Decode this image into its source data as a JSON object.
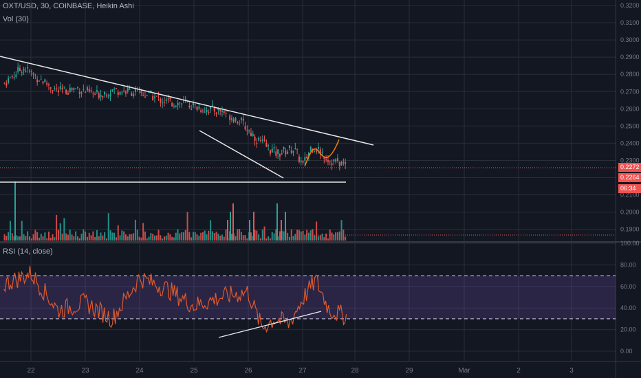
{
  "legend": {
    "symbol": "OXT/USD, 30, COINBASE, Heikin Ashi",
    "volume": "Vol (30)",
    "rsi": "RSI (14, close)"
  },
  "price_axis": {
    "ticks": [
      "0.3200",
      "0.3100",
      "0.3000",
      "0.2900",
      "0.2800",
      "0.2700",
      "0.2600",
      "0.2500",
      "0.2400",
      "0.2300",
      "0.2200",
      "0.2100",
      "0.2000",
      "0.1900"
    ]
  },
  "rsi_axis": {
    "ticks": [
      "100.00",
      "80.00",
      "60.00",
      "40.00",
      "20.00",
      "0.00"
    ]
  },
  "time_axis": {
    "ticks": [
      "22",
      "23",
      "24",
      "25",
      "26",
      "27",
      "28",
      "29",
      "Mar",
      "2",
      "3"
    ]
  },
  "tags": {
    "last_price": "0.2272",
    "line_price": "0.2264",
    "countdown": "06:34"
  },
  "colors": {
    "background": "#131722",
    "up": "#26a69a",
    "down": "#ef5350",
    "grid": "#2a2e39",
    "rsi_line": "#e05a2b",
    "rsi_band": "#7e57c2",
    "trendline": "#e8e8e8",
    "projection": "#f57c00",
    "price_line": "#ef5350",
    "countdown_tag": "#ef5350"
  },
  "chart_data": [
    {
      "type": "candlestick",
      "title": "OXT/USD, 30, COINBASE, Heikin Ashi",
      "x_range": [
        "Feb 21 12:00",
        "Mar 3 12:00"
      ],
      "y_range": [
        0.187,
        0.322
      ],
      "last_price": 0.2272,
      "price_lines": [
        0.2272,
        0.2264,
        0.2195,
        0.1905
      ],
      "price_path": [
        {
          "x": "Feb 21 12:00",
          "y": 0.275
        },
        {
          "x": "Feb 21 20:00",
          "y": 0.284
        },
        {
          "x": "Feb 22 04:00",
          "y": 0.277
        },
        {
          "x": "Feb 22 12:00",
          "y": 0.27
        },
        {
          "x": "Feb 22 20:00",
          "y": 0.272
        },
        {
          "x": "Feb 23 04:00",
          "y": 0.268
        },
        {
          "x": "Feb 23 12:00",
          "y": 0.271
        },
        {
          "x": "Feb 23 20:00",
          "y": 0.27
        },
        {
          "x": "Feb 24 04:00",
          "y": 0.268
        },
        {
          "x": "Feb 24 12:00",
          "y": 0.264
        },
        {
          "x": "Feb 24 20:00",
          "y": 0.263
        },
        {
          "x": "Feb 25 04:00",
          "y": 0.26
        },
        {
          "x": "Feb 25 12:00",
          "y": 0.259
        },
        {
          "x": "Feb 25 20:00",
          "y": 0.253
        },
        {
          "x": "Feb 26 04:00",
          "y": 0.242
        },
        {
          "x": "Feb 26 12:00",
          "y": 0.234
        },
        {
          "x": "Feb 26 20:00",
          "y": 0.237
        },
        {
          "x": "Feb 27 00:00",
          "y": 0.227
        },
        {
          "x": "Feb 27 04:00",
          "y": 0.239
        },
        {
          "x": "Feb 27 08:00",
          "y": 0.235
        },
        {
          "x": "Feb 27 12:00",
          "y": 0.23
        },
        {
          "x": "Feb 27 20:00",
          "y": 0.2272
        }
      ]
    },
    {
      "type": "bar",
      "title": "Vol (30)",
      "y_range": [
        0,
        1
      ]
    },
    {
      "type": "line",
      "title": "RSI (14, close)",
      "y_range": [
        -5,
        100
      ],
      "bands": [
        30,
        70
      ],
      "x": [
        "Feb 21 12:00",
        "Feb 22 00:00",
        "Feb 22 12:00",
        "Feb 23 00:00",
        "Feb 23 12:00",
        "Feb 24 00:00",
        "Feb 24 12:00",
        "Feb 25 00:00",
        "Feb 25 12:00",
        "Feb 26 00:00",
        "Feb 26 06:00",
        "Feb 26 12:00",
        "Feb 26 18:00",
        "Feb 27 00:00",
        "Feb 27 06:00",
        "Feb 27 12:00",
        "Feb 27 20:00"
      ],
      "values": [
        62,
        72,
        38,
        45,
        30,
        68,
        58,
        42,
        50,
        55,
        22,
        30,
        25,
        48,
        66,
        38,
        32
      ]
    }
  ]
}
